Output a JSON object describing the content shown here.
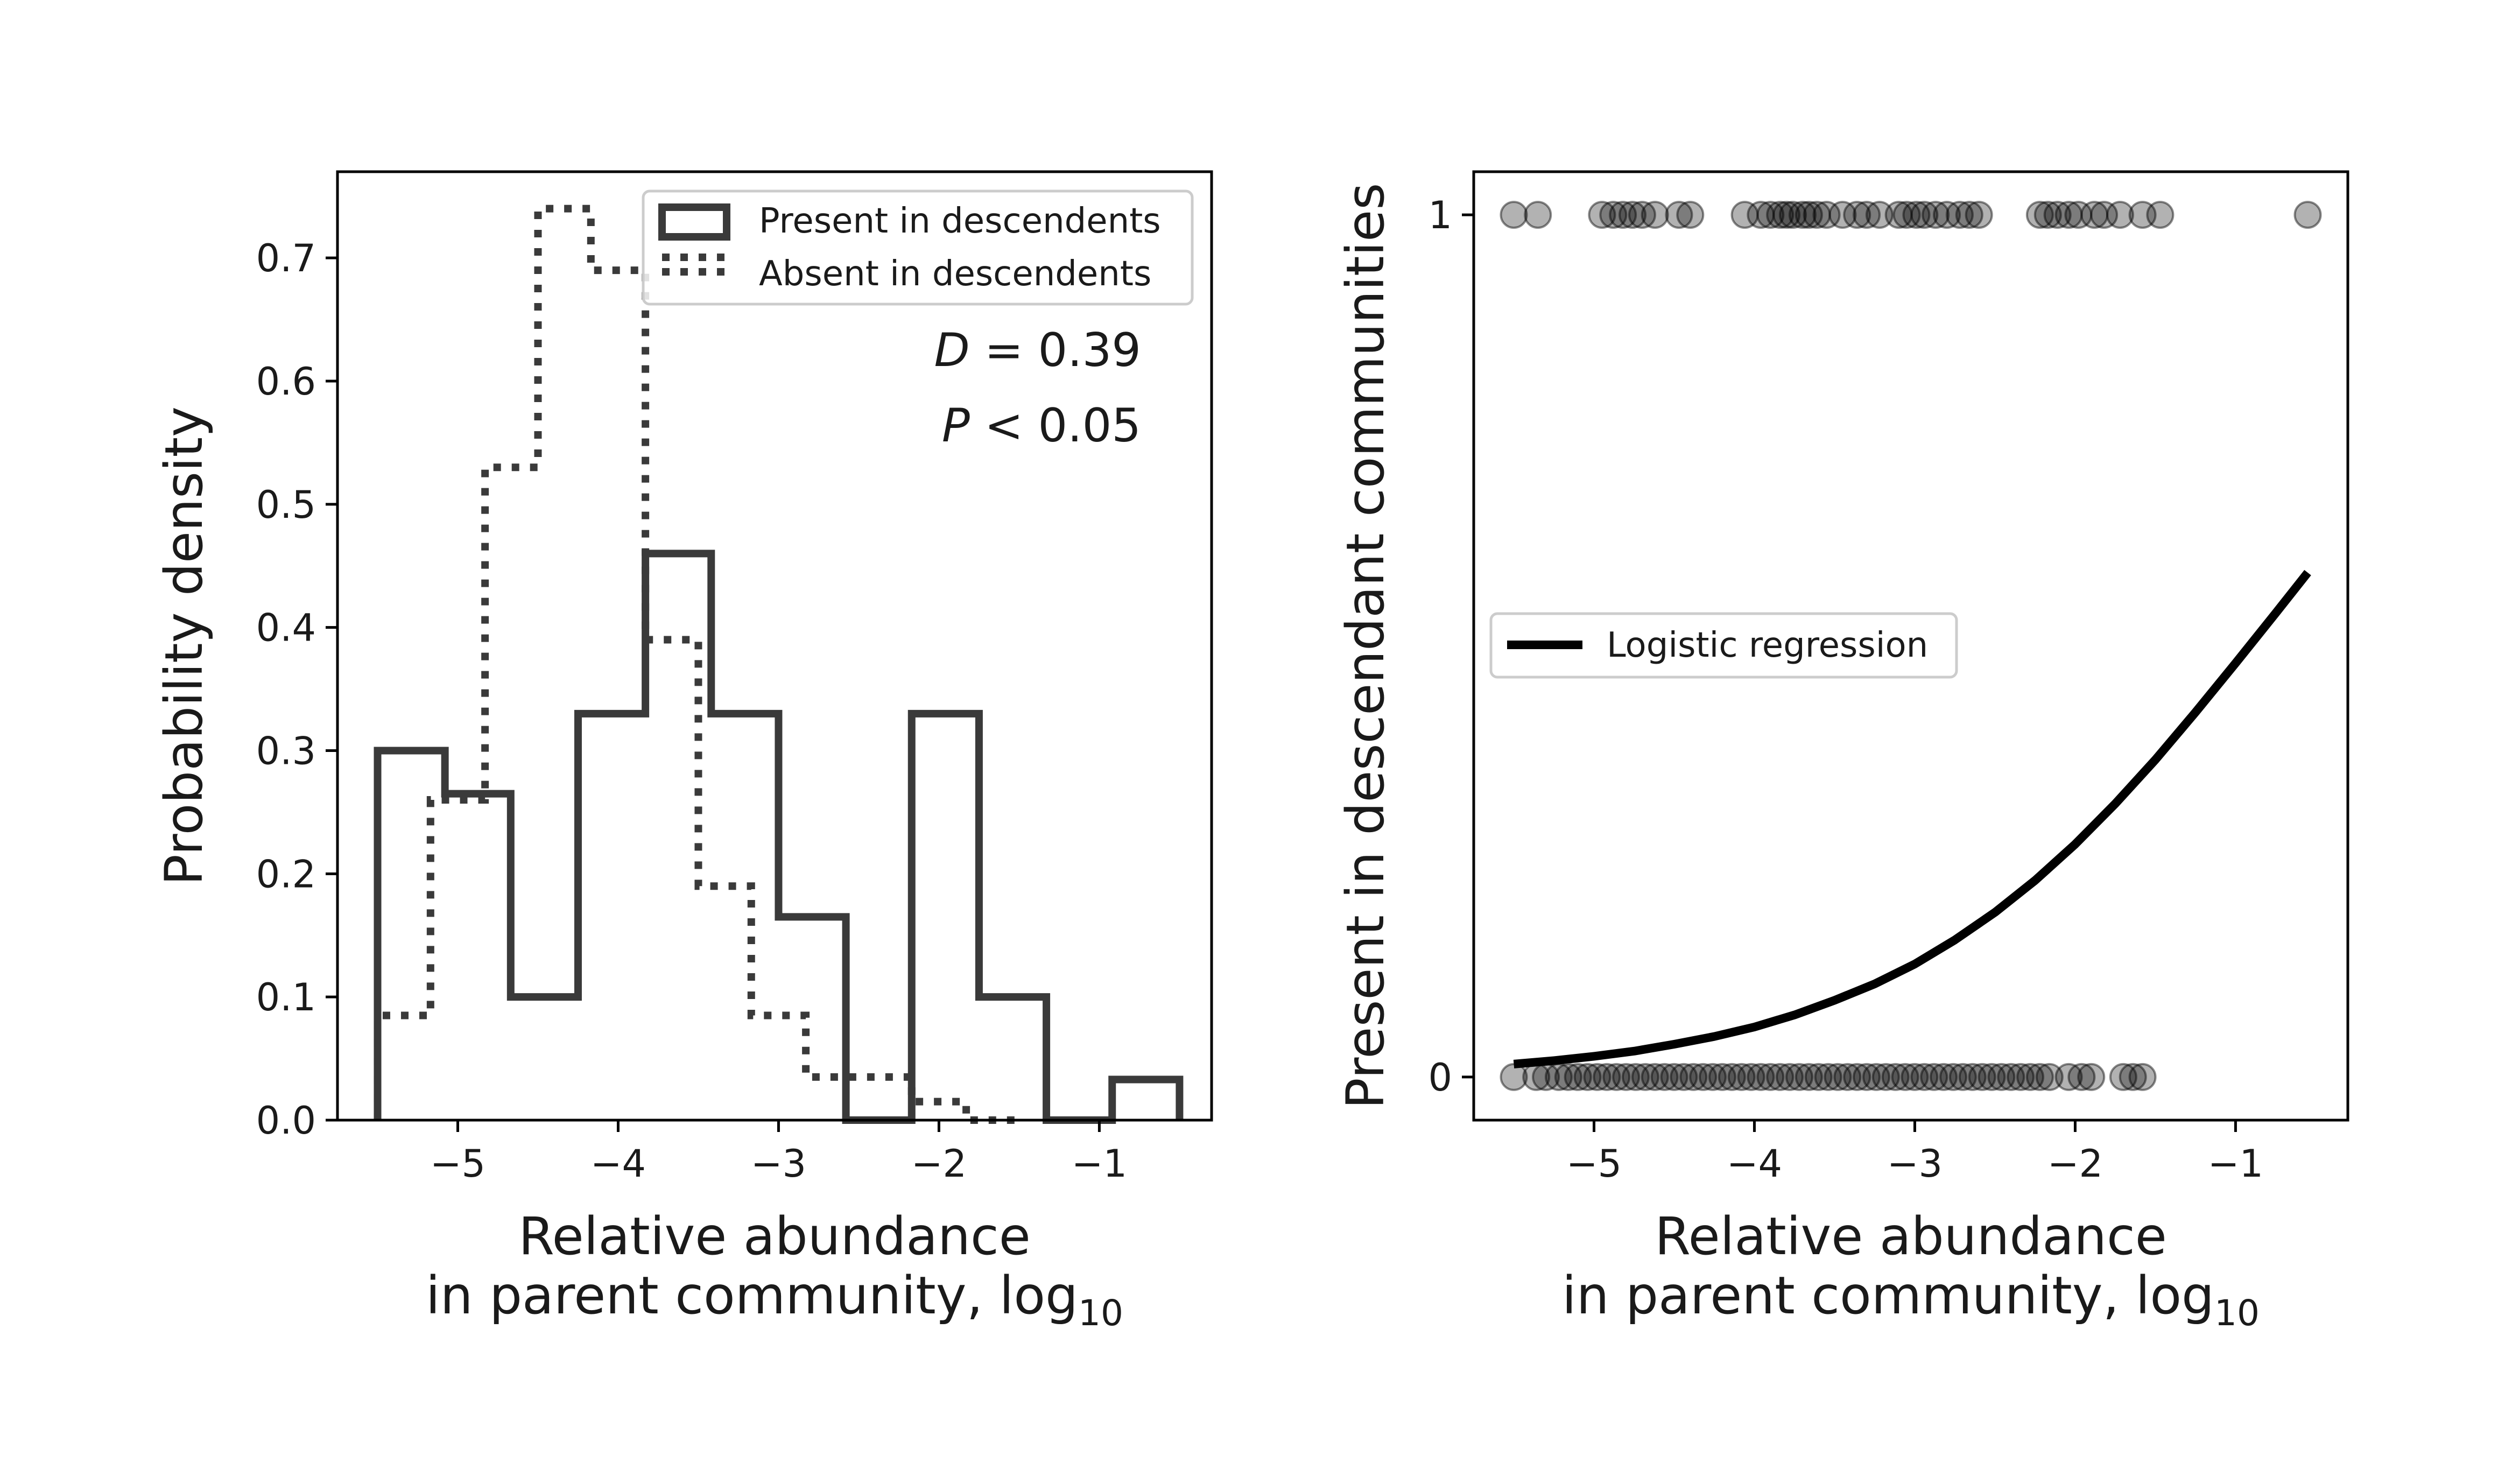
{
  "chart_data": [
    {
      "type": "histogram",
      "xlabel": "Relative abundance",
      "xlabel_line2": "in parent community, log",
      "xlabel_subscript": "10",
      "ylabel": "Probability density",
      "xlim": [
        -5.75,
        -0.3
      ],
      "ylim": [
        0.0,
        0.77
      ],
      "xticks": [
        -5,
        -4,
        -3,
        -2,
        -1
      ],
      "xtick_labels": [
        "−5",
        "−4",
        "−3",
        "−2",
        "−1"
      ],
      "yticks": [
        0.0,
        0.1,
        0.2,
        0.3,
        0.4,
        0.5,
        0.6,
        0.7
      ],
      "ytick_labels": [
        "0.0",
        "0.1",
        "0.2",
        "0.3",
        "0.4",
        "0.5",
        "0.6",
        "0.7"
      ],
      "grid": false,
      "legend_position": "top-right",
      "annotations": {
        "D_label": "D",
        "D_value": " = 0.39",
        "P_label": "P",
        "P_value": " < 0.05"
      },
      "series": [
        {
          "name": "Present in descendents",
          "style": "solid",
          "color": "#3a3a3a",
          "edges": [
            -5.5,
            -5.08,
            -4.67,
            -4.25,
            -3.83,
            -3.42,
            -3.0,
            -2.58,
            -2.17,
            -1.75,
            -1.33,
            -0.92,
            -0.5
          ],
          "values": [
            0.3,
            0.265,
            0.1,
            0.33,
            0.46,
            0.33,
            0.165,
            0.0,
            0.33,
            0.1,
            0.0,
            0.033
          ]
        },
        {
          "name": "Absent in descendents",
          "style": "dotted",
          "color": "#3a3a3a",
          "edges": [
            -5.5,
            -5.17,
            -4.83,
            -4.5,
            -4.17,
            -3.83,
            -3.5,
            -3.17,
            -2.83,
            -2.5,
            -2.17,
            -1.83,
            -1.5
          ],
          "values": [
            0.085,
            0.26,
            0.53,
            0.74,
            0.69,
            0.39,
            0.19,
            0.085,
            0.035,
            0.035,
            0.015,
            0.0
          ]
        }
      ]
    },
    {
      "type": "scatter",
      "xlabel": "Relative abundance",
      "xlabel_line2": "in parent community, log",
      "xlabel_subscript": "10",
      "ylabel": "Present in descendant communities",
      "xlim": [
        -5.75,
        -0.3
      ],
      "ylim": [
        -0.05,
        1.05
      ],
      "xticks": [
        -5,
        -4,
        -3,
        -2,
        -1
      ],
      "xtick_labels": [
        "−5",
        "−4",
        "−3",
        "−2",
        "−1"
      ],
      "yticks": [
        0,
        1
      ],
      "ytick_labels": [
        "0",
        "1"
      ],
      "grid": false,
      "legend_position": "center-left",
      "point_color": "#000000",
      "point_alpha": 0.3,
      "series": [
        {
          "name": "",
          "y": 1,
          "x": [
            -5.5,
            -5.35,
            -4.95,
            -4.88,
            -4.82,
            -4.76,
            -4.7,
            -4.62,
            -4.47,
            -4.4,
            -4.06,
            -3.96,
            -3.9,
            -3.84,
            -3.8,
            -3.76,
            -3.7,
            -3.66,
            -3.61,
            -3.55,
            -3.45,
            -3.36,
            -3.3,
            -3.22,
            -3.1,
            -3.05,
            -2.99,
            -2.94,
            -2.87,
            -2.8,
            -2.72,
            -2.66,
            -2.6,
            -2.22,
            -2.17,
            -2.11,
            -2.04,
            -1.98,
            -1.88,
            -1.82,
            -1.72,
            -1.58,
            -1.47,
            -0.55
          ]
        },
        {
          "name": "",
          "y": 0,
          "x": [
            -5.5,
            -5.36,
            -5.3,
            -5.22,
            -5.16,
            -5.1,
            -5.04,
            -4.98,
            -4.92,
            -4.86,
            -4.8,
            -4.74,
            -4.68,
            -4.62,
            -4.56,
            -4.5,
            -4.44,
            -4.38,
            -4.32,
            -4.26,
            -4.2,
            -4.14,
            -4.08,
            -4.02,
            -3.96,
            -3.9,
            -3.84,
            -3.78,
            -3.72,
            -3.66,
            -3.6,
            -3.54,
            -3.48,
            -3.42,
            -3.36,
            -3.3,
            -3.24,
            -3.18,
            -3.12,
            -3.06,
            -3.0,
            -2.94,
            -2.88,
            -2.82,
            -2.76,
            -2.7,
            -2.64,
            -2.58,
            -2.52,
            -2.46,
            -2.4,
            -2.34,
            -2.28,
            -2.22,
            -2.16,
            -2.04,
            -1.96,
            -1.9,
            -1.7,
            -1.64,
            -1.58
          ]
        },
        {
          "name": "Logistic regression",
          "type": "line",
          "color": "#000000",
          "x": [
            -5.5,
            -5.25,
            -5.0,
            -4.75,
            -4.5,
            -4.25,
            -4.0,
            -3.75,
            -3.5,
            -3.25,
            -3.0,
            -2.75,
            -2.5,
            -2.25,
            -2.0,
            -1.75,
            -1.5,
            -1.25,
            -1.0,
            -0.75,
            -0.55
          ],
          "y": [
            0.015,
            0.019,
            0.024,
            0.03,
            0.038,
            0.047,
            0.058,
            0.072,
            0.089,
            0.108,
            0.131,
            0.159,
            0.191,
            0.228,
            0.27,
            0.317,
            0.368,
            0.423,
            0.48,
            0.538,
            0.585
          ]
        }
      ]
    }
  ]
}
